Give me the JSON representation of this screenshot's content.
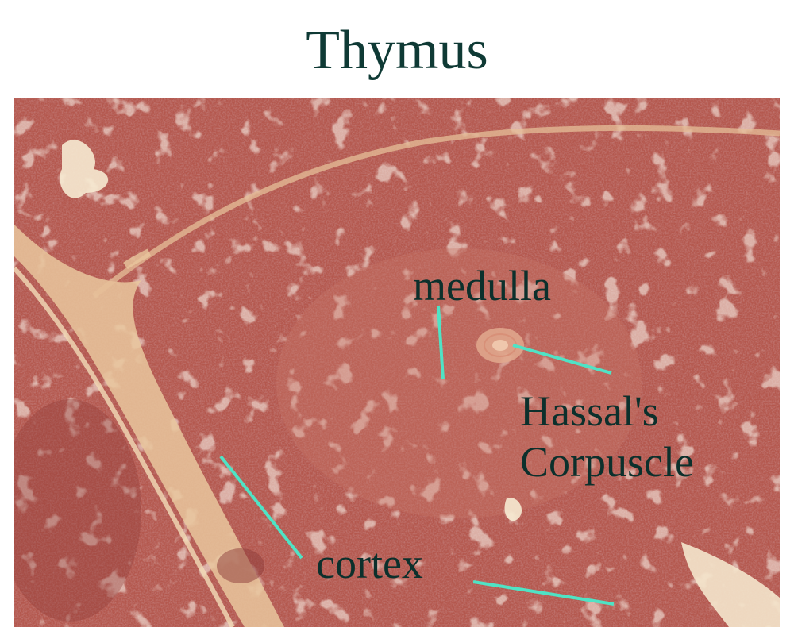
{
  "title": "Thymus",
  "image": {
    "subject": "thymus",
    "colors": {
      "tissue_base": "#b4584e",
      "tissue_dark": "#8c3a37",
      "connective": "#e9c79e",
      "space": "#f6ead2",
      "pointer_line": "#4fe3c5",
      "label_text": "#0c302c",
      "title_text": "#0f3a35"
    }
  },
  "labels": {
    "medulla": "medulla",
    "hassal_line1": "Hassal's",
    "hassal_line2": "Corpuscle",
    "cortex": "cortex"
  }
}
